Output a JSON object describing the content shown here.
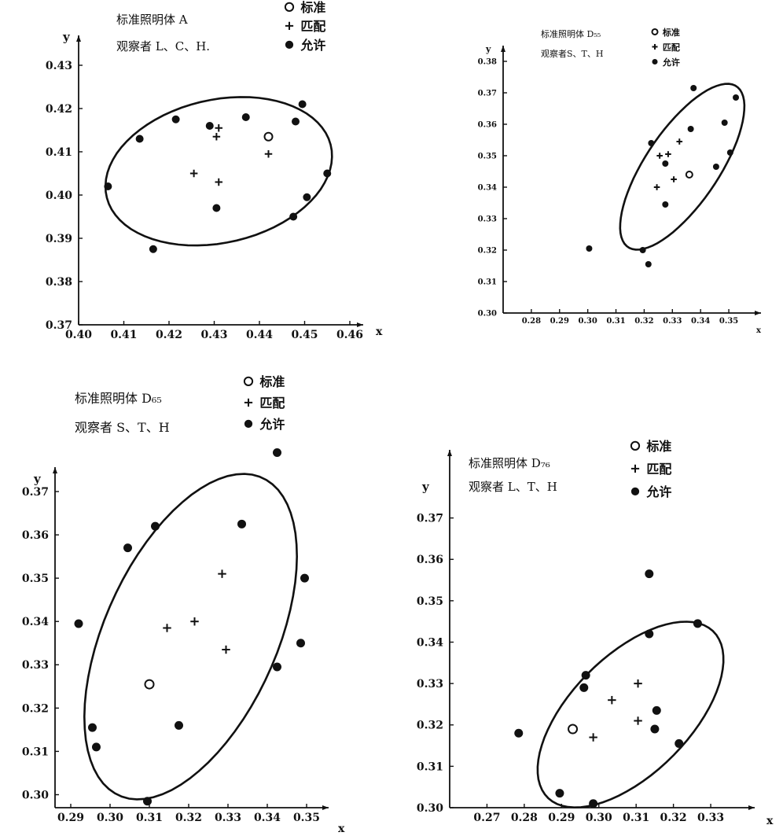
{
  "chart_data": [
    {
      "type": "scatter",
      "illuminant_label": "标准照明体 A",
      "observer_label": "观察者 L、C、H.",
      "legend": [
        "标准",
        "匹配",
        "允许"
      ],
      "xlabel": "x",
      "ylabel": "y",
      "xlim": [
        0.4,
        0.46
      ],
      "ylim": [
        0.37,
        0.43
      ],
      "xticks": [
        "0.40",
        "0.41",
        "0.42",
        "0.43",
        "0.44",
        "0.45",
        "0.46"
      ],
      "yticks": [
        "0.37",
        "0.38",
        "0.39",
        "0.40",
        "0.41",
        "0.42",
        "0.43"
      ],
      "ellipse": {
        "cx": 0.431,
        "cy": 0.4055,
        "rx": 0.0255,
        "ry": 0.0165,
        "rotate_deg": -14
      },
      "series": [
        {
          "name": "标准",
          "marker": "open-circle",
          "points": [
            [
              0.442,
              0.4135
            ]
          ]
        },
        {
          "name": "匹配",
          "marker": "plus",
          "points": [
            [
              0.431,
              0.4155
            ],
            [
              0.4305,
              0.4135
            ],
            [
              0.442,
              0.4095
            ],
            [
              0.4255,
              0.405
            ],
            [
              0.431,
              0.403
            ]
          ]
        },
        {
          "name": "允许",
          "marker": "filled-circle",
          "points": [
            [
              0.4135,
              0.413
            ],
            [
              0.4215,
              0.4175
            ],
            [
              0.429,
              0.416
            ],
            [
              0.437,
              0.418
            ],
            [
              0.448,
              0.417
            ],
            [
              0.4495,
              0.421
            ],
            [
              0.4065,
              0.402
            ],
            [
              0.4305,
              0.397
            ],
            [
              0.4165,
              0.3875
            ],
            [
              0.4475,
              0.395
            ],
            [
              0.4505,
              0.3995
            ],
            [
              0.455,
              0.405
            ]
          ]
        }
      ]
    },
    {
      "type": "scatter",
      "illuminant_label": "标准照明体 D₅₅",
      "observer_label": "观察者S、T、H",
      "legend": [
        "标准",
        "匹配",
        "允许"
      ],
      "xlabel": "x",
      "ylabel": "y",
      "xlim": [
        0.27,
        0.355
      ],
      "ylim": [
        0.3,
        0.385
      ],
      "xticks": [
        "0.28",
        "0.29",
        "0.30",
        "0.31",
        "0.32",
        "0.33",
        "0.34",
        "0.35"
      ],
      "yticks": [
        "0.30",
        "0.31",
        "0.32",
        "0.33",
        "0.34",
        "0.35",
        "0.36",
        "0.37",
        "0.38"
      ],
      "ellipse": {
        "cx": 0.3335,
        "cy": 0.3465,
        "rx": 0.032,
        "ry": 0.0125,
        "rotate_deg": -52
      },
      "series": [
        {
          "name": "标准",
          "marker": "open-circle",
          "points": [
            [
              0.336,
              0.344
            ]
          ]
        },
        {
          "name": "匹配",
          "marker": "plus",
          "points": [
            [
              0.3255,
              0.35
            ],
            [
              0.3285,
              0.3505
            ],
            [
              0.3325,
              0.3545
            ],
            [
              0.3245,
              0.34
            ],
            [
              0.3305,
              0.3425
            ]
          ]
        },
        {
          "name": "允许",
          "marker": "filled-circle",
          "points": [
            [
              0.3225,
              0.354
            ],
            [
              0.3275,
              0.3475
            ],
            [
              0.3365,
              0.3585
            ],
            [
              0.3375,
              0.3715
            ],
            [
              0.3485,
              0.3605
            ],
            [
              0.3525,
              0.3685
            ],
            [
              0.3505,
              0.351
            ],
            [
              0.3455,
              0.3465
            ],
            [
              0.3275,
              0.3345
            ],
            [
              0.3005,
              0.3205
            ],
            [
              0.3195,
              0.32
            ],
            [
              0.3215,
              0.3155
            ]
          ]
        }
      ]
    },
    {
      "type": "scatter",
      "illuminant_label": "标准照明体 D₆₅",
      "observer_label": "观察者 S、T、H",
      "legend": [
        "标准",
        "匹配",
        "允许"
      ],
      "xlabel": "x",
      "ylabel": "y",
      "xlim": [
        0.286,
        0.354
      ],
      "ylim": [
        0.297,
        0.374
      ],
      "xticks": [
        "0.29",
        "0.30",
        "0.31",
        "0.32",
        "0.33",
        "0.34",
        "0.35"
      ],
      "yticks": [
        "0.30",
        "0.31",
        "0.32",
        "0.33",
        "0.34",
        "0.35",
        "0.36",
        "0.37"
      ],
      "ellipse": {
        "cx": 0.3205,
        "cy": 0.3365,
        "rx": 0.041,
        "ry": 0.0215,
        "rotate_deg": -62
      },
      "series": [
        {
          "name": "标准",
          "marker": "open-circle",
          "points": [
            [
              0.31,
              0.3255
            ]
          ]
        },
        {
          "name": "匹配",
          "marker": "plus",
          "points": [
            [
              0.3145,
              0.3385
            ],
            [
              0.3215,
              0.34
            ],
            [
              0.3285,
              0.351
            ],
            [
              0.3295,
              0.3335
            ]
          ]
        },
        {
          "name": "允许",
          "marker": "filled-circle",
          "points": [
            [
              0.292,
              0.3395
            ],
            [
              0.3045,
              0.357
            ],
            [
              0.3115,
              0.362
            ],
            [
              0.3335,
              0.3625
            ],
            [
              0.3425,
              0.379
            ],
            [
              0.3495,
              0.35
            ],
            [
              0.3485,
              0.335
            ],
            [
              0.3425,
              0.3295
            ],
            [
              0.3175,
              0.316
            ],
            [
              0.2955,
              0.3155
            ],
            [
              0.2965,
              0.311
            ],
            [
              0.3095,
              0.2985
            ]
          ]
        }
      ]
    },
    {
      "type": "scatter",
      "illuminant_label": "标准照明体 D₇₆",
      "observer_label": "观察者 L、T、H",
      "legend": [
        "标准",
        "匹配",
        "允许"
      ],
      "xlabel": "x",
      "ylabel": "y",
      "xlim": [
        0.26,
        0.338
      ],
      "ylim": [
        0.3,
        0.38
      ],
      "xticks": [
        "0.27",
        "0.28",
        "0.29",
        "0.30",
        "0.31",
        "0.32",
        "0.33"
      ],
      "yticks": [
        "0.30",
        "0.31",
        "0.32",
        "0.33",
        "0.34",
        "0.35",
        "0.36",
        "0.37"
      ],
      "ellipse": {
        "cx": 0.3085,
        "cy": 0.3225,
        "rx": 0.03,
        "ry": 0.015,
        "rotate_deg": -40
      },
      "series": [
        {
          "name": "标准",
          "marker": "open-circle",
          "points": [
            [
              0.293,
              0.319
            ]
          ]
        },
        {
          "name": "匹配",
          "marker": "plus",
          "points": [
            [
              0.3035,
              0.326
            ],
            [
              0.3105,
              0.33
            ],
            [
              0.3105,
              0.321
            ],
            [
              0.2985,
              0.317
            ]
          ]
        },
        {
          "name": "允许",
          "marker": "filled-circle",
          "points": [
            [
              0.2785,
              0.318
            ],
            [
              0.2965,
              0.332
            ],
            [
              0.296,
              0.329
            ],
            [
              0.3135,
              0.3565
            ],
            [
              0.3135,
              0.342
            ],
            [
              0.3265,
              0.3445
            ],
            [
              0.3155,
              0.3235
            ],
            [
              0.315,
              0.319
            ],
            [
              0.3215,
              0.3155
            ],
            [
              0.2895,
              0.3035
            ],
            [
              0.2985,
              0.301
            ]
          ]
        }
      ]
    }
  ]
}
